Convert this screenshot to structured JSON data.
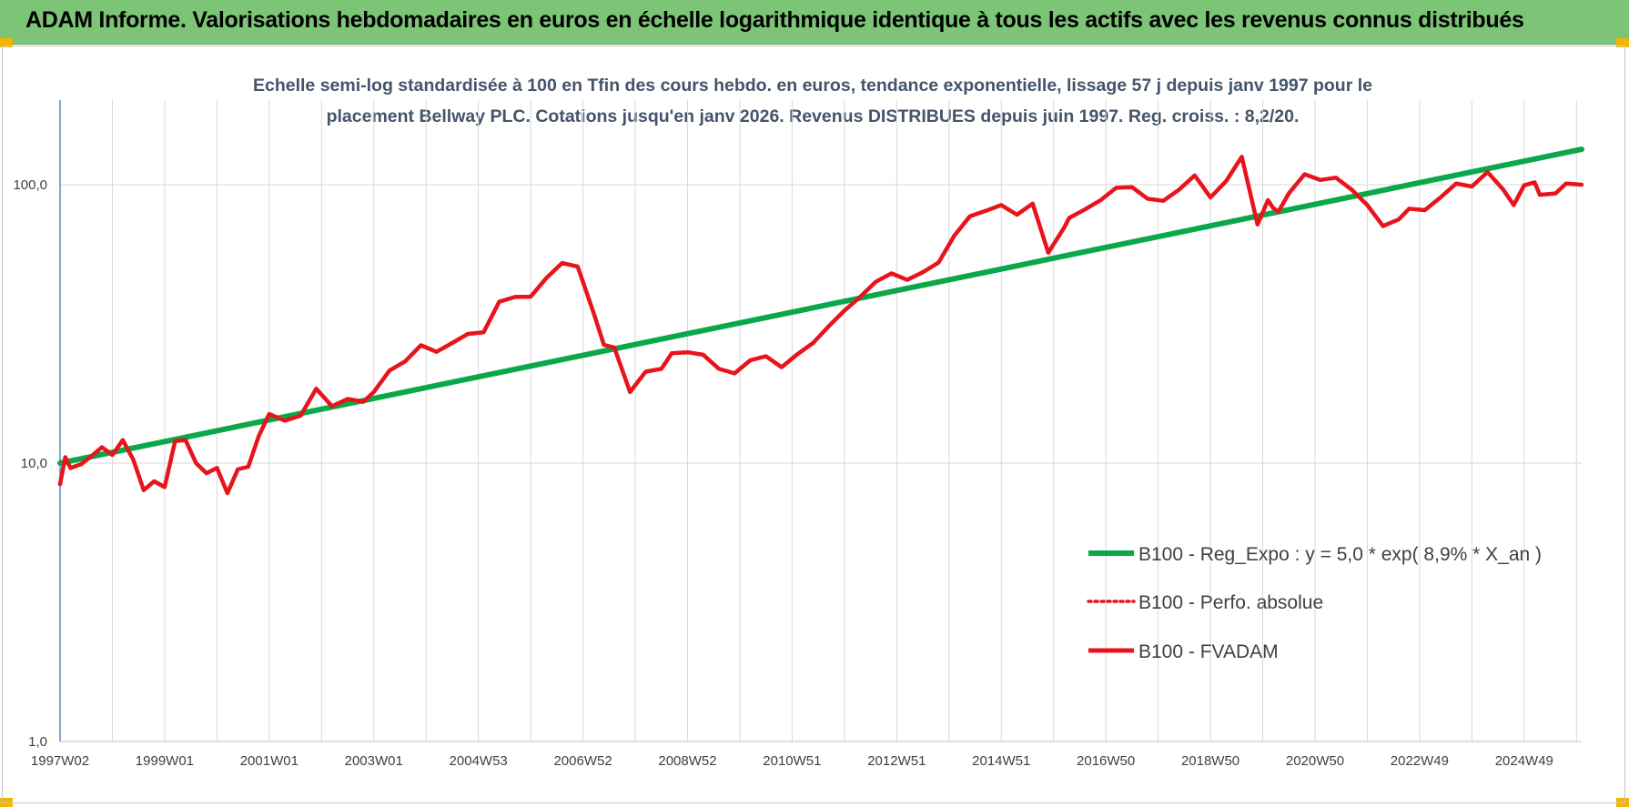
{
  "header": {
    "title": "ADAM Informe. Valorisations hebdomadaires en euros en échelle logarithmique identique à tous les actifs avec les revenus connus distribués",
    "background_color": "#7cc576",
    "corner_color": "#f5b400"
  },
  "chart_data": {
    "type": "line",
    "subtitle_lines": [
      "Echelle semi-log standardisée à 100 en Tfin des cours hebdo. en euros, tendance exponentielle, lissage 57 j depuis janv 1997 pour le",
      "placement Bellway PLC. Cotations jusqu'en janv 2026. Revenus DISTRIBUES depuis juin 1997. Reg. croiss. : 8,2/20."
    ],
    "y_scale": "log",
    "ylim": [
      1,
      100
    ],
    "y_ticks": [
      {
        "value": 1,
        "label": "1,0"
      },
      {
        "value": 10,
        "label": "10,0"
      },
      {
        "value": 100,
        "label": "100,0"
      }
    ],
    "x_unit": "year",
    "xlim": [
      1997.0,
      2026.1
    ],
    "x_ticks": [
      {
        "x": 1997.0,
        "label": "1997W02"
      },
      {
        "x": 1999.0,
        "label": "1999W01"
      },
      {
        "x": 2001.0,
        "label": "2001W01"
      },
      {
        "x": 2003.0,
        "label": "2003W01"
      },
      {
        "x": 2005.0,
        "label": "2004W53"
      },
      {
        "x": 2007.0,
        "label": "2006W52"
      },
      {
        "x": 2009.0,
        "label": "2008W52"
      },
      {
        "x": 2011.0,
        "label": "2010W51"
      },
      {
        "x": 2013.0,
        "label": "2012W51"
      },
      {
        "x": 2015.0,
        "label": "2014W51"
      },
      {
        "x": 2017.0,
        "label": "2016W50"
      },
      {
        "x": 2019.0,
        "label": "2018W50"
      },
      {
        "x": 2021.0,
        "label": "2020W50"
      },
      {
        "x": 2023.0,
        "label": "2022W49"
      },
      {
        "x": 2025.0,
        "label": "2024W49"
      }
    ],
    "grid": "vertical and horizontal, light gray",
    "legend_position": "lower-right",
    "series": [
      {
        "name": "B100 - Reg_Expo : y = 5,0 * exp( 8,9% *  X_an )",
        "color": "#0aa84a",
        "style": "solid",
        "x": [
          1997.0,
          2026.1
        ],
        "y": [
          10.0,
          134.0
        ]
      },
      {
        "name": "B100 - Perfo. absolue",
        "color": "#e8141c",
        "style": "dotted",
        "x": [],
        "y": []
      },
      {
        "name": "B100 - FVADAM",
        "color": "#e8141c",
        "style": "solid",
        "x": [
          1997.0,
          1997.1,
          1997.2,
          1997.4,
          1997.6,
          1997.8,
          1998.0,
          1998.2,
          1998.4,
          1998.6,
          1998.8,
          1999.0,
          1999.2,
          1999.4,
          1999.6,
          1999.8,
          2000.0,
          2000.2,
          2000.4,
          2000.6,
          2000.8,
          2001.0,
          2001.3,
          2001.6,
          2001.9,
          2002.2,
          2002.5,
          2002.8,
          2003.0,
          2003.3,
          2003.6,
          2003.9,
          2004.2,
          2004.5,
          2004.8,
          2005.1,
          2005.4,
          2005.7,
          2006.0,
          2006.3,
          2006.6,
          2006.9,
          2007.2,
          2007.4,
          2007.6,
          2007.9,
          2008.2,
          2008.5,
          2008.7,
          2009.0,
          2009.3,
          2009.6,
          2009.9,
          2010.2,
          2010.5,
          2010.8,
          2011.1,
          2011.4,
          2011.7,
          2012.0,
          2012.3,
          2012.6,
          2012.9,
          2013.2,
          2013.5,
          2013.8,
          2014.1,
          2014.4,
          2014.7,
          2015.0,
          2015.3,
          2015.6,
          2015.9,
          2016.2,
          2016.3,
          2016.6,
          2016.9,
          2017.2,
          2017.5,
          2017.8,
          2018.1,
          2018.4,
          2018.7,
          2019.0,
          2019.3,
          2019.6,
          2019.9,
          2020.1,
          2020.2,
          2020.3,
          2020.5,
          2020.8,
          2021.1,
          2021.4,
          2021.7,
          2022.0,
          2022.3,
          2022.6,
          2022.8,
          2023.1,
          2023.4,
          2023.7,
          2024.0,
          2024.3,
          2024.6,
          2024.8,
          2025.0,
          2025.2,
          2025.3,
          2025.6,
          2025.8,
          2026.1
        ],
        "y": [
          8.4,
          10.5,
          9.6,
          9.9,
          10.6,
          11.4,
          10.7,
          12.1,
          10.3,
          8.0,
          8.6,
          8.2,
          12.0,
          12.1,
          10.0,
          9.2,
          9.6,
          7.8,
          9.5,
          9.7,
          12.5,
          15.0,
          14.2,
          14.8,
          18.5,
          16.0,
          17.0,
          16.6,
          18.0,
          21.5,
          23.2,
          26.5,
          25.1,
          27.0,
          29.1,
          29.5,
          38.0,
          39.5,
          39.6,
          46.2,
          52.3,
          50.8,
          34.8,
          26.6,
          26.0,
          18.0,
          21.3,
          21.8,
          24.8,
          25.0,
          24.5,
          21.8,
          21.0,
          23.4,
          24.2,
          22.1,
          24.6,
          27.0,
          31.0,
          35.3,
          39.5,
          44.8,
          48.0,
          45.5,
          48.5,
          52.5,
          65.5,
          77.0,
          80.5,
          84.5,
          78.0,
          85.5,
          57.0,
          70.0,
          76.0,
          81.5,
          88.0,
          97.5,
          98.0,
          89.0,
          87.5,
          96.0,
          108.0,
          90.0,
          103.0,
          126.0,
          72.0,
          88.0,
          82.5,
          80.0,
          93.0,
          109.0,
          104.0,
          106.0,
          96.0,
          84.5,
          71.0,
          75.0,
          82.0,
          81.0,
          90.0,
          101.0,
          98.5,
          111.0,
          96.0,
          84.5,
          99.5,
          102.0,
          92.0,
          93.0,
          101.0,
          100.0
        ]
      }
    ]
  }
}
